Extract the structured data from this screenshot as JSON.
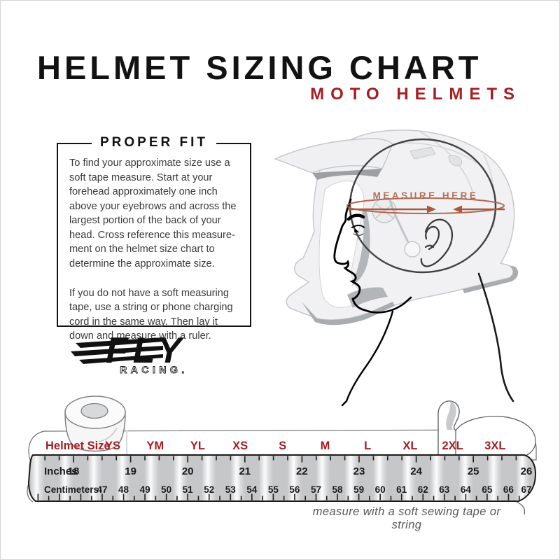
{
  "header": {
    "title": "HELMET SIZING CHART",
    "subtitle": "MOTO HELMETS"
  },
  "proper_fit": {
    "heading": "PROPER FIT",
    "paragraph1_lines": [
      "To find your approximate size use a",
      "soft tape measure. Start at your",
      "forehead approximately one inch",
      "above your eyebrows and across the",
      "largest portion of the back of your",
      "head. Cross reference this measure-",
      "ment on the helmet size chart to",
      "determine the approximate size."
    ],
    "paragraph2_lines": [
      "If you do not have a soft measuring",
      "tape, use a string or phone charging",
      "cord in the same way. Then lay it",
      "down and measure with a ruler."
    ]
  },
  "illustration": {
    "measure_label": "MEASURE HERE"
  },
  "brand": {
    "name": "FLY",
    "subname": "RACING."
  },
  "tape": {
    "size_row_label": "Helmet Size",
    "sizes": [
      "YS",
      "YM",
      "YL",
      "XS",
      "S",
      "M",
      "L",
      "XL",
      "2XL",
      "3XL"
    ],
    "inches_label": "Inches",
    "inches": [
      "18",
      "19",
      "20",
      "21",
      "22",
      "23",
      "24",
      "25",
      "26"
    ],
    "centimeters_label": "Centimeters",
    "centimeters": [
      "47",
      "48",
      "49",
      "50",
      "51",
      "52",
      "53",
      "54",
      "55",
      "56",
      "57",
      "58",
      "59",
      "60",
      "61",
      "62",
      "63",
      "64",
      "65",
      "66",
      "67"
    ]
  },
  "caption": "measure with a soft sewing tape or string",
  "colors": {
    "accent_red": "#A51E22",
    "ink": "#1A1A1A",
    "measure_line": "#B0674F",
    "measure_arrow": "#A85A40",
    "measure_text": "#B5705B",
    "tape_gray": "#C6C7C9",
    "caption_gray": "#57585A"
  }
}
